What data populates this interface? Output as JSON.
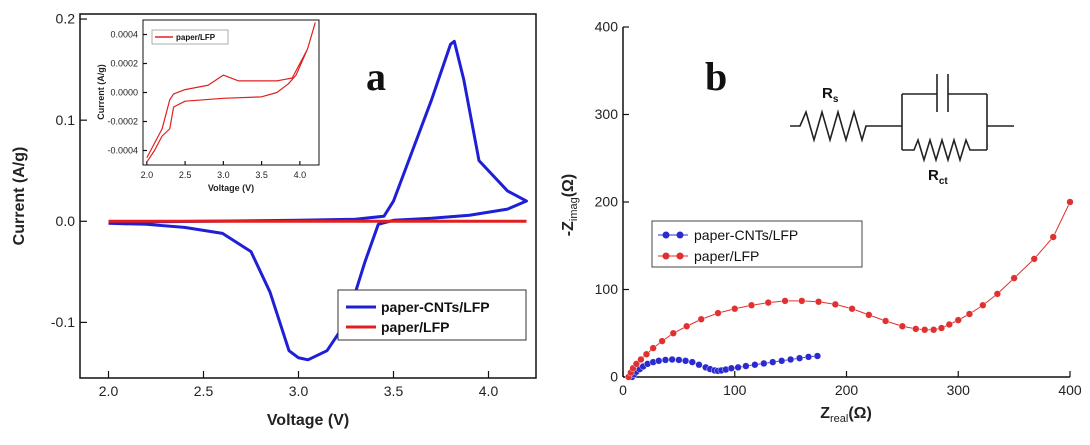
{
  "chart_data": [
    {
      "panel": "a",
      "type": "line",
      "xlabel": "Voltage (V)",
      "ylabel": "Current (A/g)",
      "xlim": [
        1.85,
        4.25
      ],
      "ylim": [
        -0.155,
        0.205
      ],
      "xticks": [
        "2.0",
        "2.5",
        "3.0",
        "3.5",
        "4.0"
      ],
      "yticks": [
        "-0.1",
        "0.0",
        "0.1",
        "0.2"
      ],
      "legend_position": "bottom-right",
      "series": [
        {
          "name": "paper-CNTs/LFP",
          "color": "#1f1fd6",
          "x": [
            2.0,
            2.5,
            3.0,
            3.3,
            3.45,
            3.5,
            3.6,
            3.7,
            3.8,
            3.82,
            3.87,
            3.95,
            4.1,
            4.2,
            4.2,
            4.1,
            3.9,
            3.7,
            3.5,
            3.42,
            3.35,
            3.25,
            3.15,
            3.05,
            3.0,
            2.95,
            2.85,
            2.75,
            2.6,
            2.4,
            2.2,
            2.0
          ],
          "y": [
            -0.001,
            0.0,
            0.001,
            0.002,
            0.005,
            0.02,
            0.07,
            0.12,
            0.175,
            0.178,
            0.14,
            0.06,
            0.03,
            0.02,
            0.02,
            0.012,
            0.006,
            0.003,
            0.001,
            -0.003,
            -0.04,
            -0.1,
            -0.128,
            -0.137,
            -0.135,
            -0.128,
            -0.07,
            -0.03,
            -0.012,
            -0.006,
            -0.003,
            -0.002
          ]
        },
        {
          "name": "paper/LFP",
          "color": "#e02020",
          "x": [
            2.0,
            4.2
          ],
          "y": [
            0.0,
            0.0
          ]
        }
      ]
    },
    {
      "panel": "a-inset",
      "type": "line",
      "xlabel": "Voltage (V)",
      "ylabel": "Current (A/g)",
      "xlim": [
        1.95,
        4.25
      ],
      "ylim": [
        -0.0005,
        0.0005
      ],
      "xticks": [
        "2.0",
        "2.5",
        "3.0",
        "3.5",
        "4.0"
      ],
      "yticks": [
        "-0.0004",
        "-0.0002",
        "0.0000",
        "0.0002",
        "0.0004"
      ],
      "legend_position": "top-left",
      "series": [
        {
          "name": "paper/LFP",
          "color": "#e02020",
          "x": [
            2.0,
            2.2,
            2.3,
            2.35,
            2.5,
            2.8,
            3.0,
            3.2,
            3.5,
            3.7,
            3.8,
            3.9,
            4.0,
            4.1,
            4.2,
            4.2,
            4.1,
            3.95,
            3.85,
            3.7,
            3.5,
            3.0,
            2.5,
            2.35,
            2.3,
            2.2,
            2.1,
            2.0
          ],
          "y": [
            -0.00045,
            -0.00025,
            -5e-05,
            -1e-05,
            2e-05,
            5e-05,
            0.00012,
            8e-05,
            8e-05,
            8e-05,
            9e-05,
            0.0001,
            0.0002,
            0.0003,
            0.00048,
            0.00048,
            0.0003,
            0.00012,
            6e-05,
            0.0,
            -3e-05,
            -4e-05,
            -6e-05,
            -0.0001,
            -0.00025,
            -0.0003,
            -0.0004,
            -0.00048
          ]
        }
      ]
    },
    {
      "panel": "b",
      "type": "scatter",
      "xlabel": "Z_real(Ω)",
      "ylabel": "-Z_imag(Ω)",
      "xlim": [
        0,
        400
      ],
      "ylim": [
        0,
        400
      ],
      "xticks": [
        "0",
        "100",
        "200",
        "300",
        "400"
      ],
      "yticks": [
        "0",
        "100",
        "200",
        "300",
        "400"
      ],
      "legend_position": "middle-left",
      "series": [
        {
          "name": "paper-CNTs/LFP",
          "color": "#2a2ad0",
          "x": [
            8,
            10,
            12,
            15,
            18,
            22,
            27,
            32,
            38,
            44,
            50,
            56,
            62,
            68,
            74,
            78,
            82,
            85,
            88,
            92,
            97,
            103,
            110,
            118,
            126,
            134,
            142,
            150,
            158,
            166,
            174
          ],
          "y": [
            0,
            3,
            6,
            9,
            12,
            15,
            17,
            18.5,
            19.5,
            20,
            19.5,
            18.5,
            17,
            14,
            11,
            9,
            7.5,
            7,
            7.5,
            8.5,
            10,
            11,
            12.5,
            14,
            15.5,
            17,
            18.5,
            20,
            21.5,
            23,
            24
          ]
        },
        {
          "name": "paper/LFP",
          "color": "#e03030",
          "x": [
            5,
            7,
            9,
            12,
            16,
            21,
            27,
            35,
            45,
            57,
            70,
            85,
            100,
            115,
            130,
            145,
            160,
            175,
            190,
            205,
            220,
            235,
            250,
            262,
            270,
            278,
            285,
            292,
            300,
            310,
            322,
            335,
            350,
            368,
            385,
            400
          ],
          "y": [
            0,
            5,
            10,
            15,
            20,
            26,
            33,
            41,
            50,
            58,
            66,
            73,
            78,
            82,
            85,
            87,
            87,
            86,
            83,
            78,
            71,
            64,
            58,
            55,
            54,
            54,
            56,
            60,
            65,
            72,
            82,
            95,
            113,
            135,
            160,
            200
          ]
        }
      ]
    }
  ],
  "labels": {
    "panel_a": "a",
    "panel_b": "b",
    "circuit_rs": "R",
    "circuit_rs_sub": "s",
    "circuit_rct": "R",
    "circuit_rct_sub": "ct",
    "b_xlabel_main": "Z",
    "b_xlabel_sub": "real",
    "b_xlabel_unit": "(Ω)",
    "b_ylabel_pre": "-Z",
    "b_ylabel_sub": "imag",
    "b_ylabel_unit": "(Ω)"
  }
}
